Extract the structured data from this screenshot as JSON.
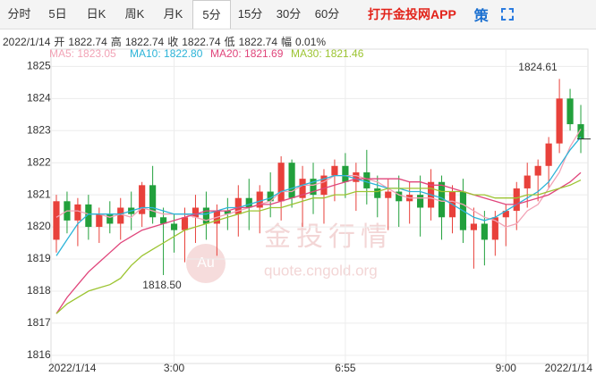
{
  "tabs": [
    "分时",
    "5日",
    "日K",
    "周K",
    "月K",
    "5分",
    "15分",
    "30分",
    "60分"
  ],
  "selected_tab": "5分",
  "app_link": "打开金投网APP",
  "strategy": "策",
  "info": {
    "date": "2022/1/14",
    "items": [
      {
        "label": "开",
        "value": "1822.74"
      },
      {
        "label": "高",
        "value": "1822.74"
      },
      {
        "label": "收",
        "value": "1822.74"
      },
      {
        "label": "低",
        "value": "1822.74"
      },
      {
        "label": "幅",
        "value": "0.01%"
      }
    ]
  },
  "chart_data": {
    "type": "candlestick",
    "categories": [
      "2022/1/14",
      null,
      null,
      null,
      null,
      null,
      null,
      null,
      null,
      null,
      null,
      "3:00",
      null,
      null,
      null,
      null,
      null,
      null,
      null,
      null,
      null,
      null,
      null,
      null,
      null,
      null,
      null,
      "6:55",
      null,
      null,
      null,
      null,
      null,
      null,
      null,
      null,
      null,
      null,
      null,
      null,
      null,
      null,
      "9:00",
      null,
      null,
      null,
      null,
      null,
      null,
      "2022/1/14"
    ],
    "open": [
      1819.6,
      1820.8,
      1820.2,
      1820.7,
      1820.0,
      1820.4,
      1820.1,
      1820.6,
      1820.4,
      1821.3,
      1820.3,
      1820.1,
      1819.9,
      1820.3,
      1820.6,
      1820.1,
      1820.5,
      1820.4,
      1820.9,
      1820.6,
      1821.1,
      1820.8,
      1822.0,
      1820.9,
      1821.5,
      1821.0,
      1821.6,
      1821.9,
      1821.4,
      1821.7,
      1821.2,
      1820.9,
      1821.1,
      1820.8,
      1821.0,
      1820.6,
      1821.4,
      1820.3,
      1821.1,
      1819.9,
      1820.1,
      1819.6,
      1820.3,
      1820.5,
      1821.2,
      1821.6,
      1821.9,
      1822.6,
      1824.0,
      1823.2
    ],
    "high": [
      1821.0,
      1821.1,
      1820.9,
      1821.0,
      1820.6,
      1820.8,
      1820.9,
      1821.1,
      1821.4,
      1821.9,
      1820.6,
      1820.4,
      1820.6,
      1821.0,
      1821.1,
      1820.7,
      1820.9,
      1821.3,
      1821.5,
      1821.3,
      1821.7,
      1822.2,
      1822.1,
      1821.9,
      1822.0,
      1821.8,
      1822.1,
      1822.3,
      1822.0,
      1822.4,
      1821.6,
      1821.5,
      1821.6,
      1821.4,
      1821.6,
      1821.8,
      1821.6,
      1821.3,
      1821.5,
      1820.6,
      1820.5,
      1820.5,
      1820.7,
      1821.4,
      1822.0,
      1822.1,
      1822.8,
      1824.61,
      1824.3,
      1823.8
    ],
    "low": [
      1819.2,
      1819.8,
      1819.4,
      1819.6,
      1819.5,
      1819.8,
      1819.6,
      1819.9,
      1820.0,
      1820.1,
      1818.5,
      1819.2,
      1818.9,
      1819.5,
      1819.6,
      1819.1,
      1819.9,
      1819.7,
      1819.9,
      1819.8,
      1820.3,
      1820.2,
      1820.6,
      1820.0,
      1820.4,
      1820.1,
      1820.8,
      1820.9,
      1820.5,
      1820.7,
      1820.3,
      1819.9,
      1820.0,
      1820.1,
      1819.7,
      1820.2,
      1819.6,
      1819.8,
      1819.5,
      1818.7,
      1818.8,
      1819.1,
      1819.4,
      1819.9,
      1820.6,
      1820.8,
      1821.2,
      1822.3,
      1823.0,
      1822.3
    ],
    "close": [
      1820.8,
      1820.2,
      1820.7,
      1820.0,
      1820.4,
      1820.1,
      1820.6,
      1820.4,
      1821.3,
      1820.3,
      1820.1,
      1819.9,
      1820.3,
      1820.6,
      1820.1,
      1820.5,
      1820.4,
      1820.9,
      1820.6,
      1821.1,
      1820.8,
      1822.0,
      1820.9,
      1821.5,
      1821.0,
      1821.6,
      1821.9,
      1821.4,
      1821.7,
      1821.2,
      1820.9,
      1821.1,
      1820.8,
      1821.0,
      1820.6,
      1821.4,
      1820.3,
      1821.1,
      1819.9,
      1820.1,
      1819.6,
      1820.3,
      1820.5,
      1821.2,
      1821.6,
      1821.9,
      1822.6,
      1824.0,
      1823.2,
      1822.74
    ],
    "up_color": "#e8413b",
    "down_color": "#22a03c",
    "series": [
      {
        "name": "MA5",
        "legend_label": "MA5: 1823.05",
        "color": "#f2a3b6",
        "values": [
          1820.3,
          1820.5,
          1820.5,
          1820.4,
          1820.4,
          1820.3,
          1820.4,
          1820.3,
          1820.6,
          1820.5,
          1820.4,
          1820.4,
          1820.4,
          1820.3,
          1820.2,
          1820.3,
          1820.4,
          1820.5,
          1820.6,
          1820.7,
          1820.8,
          1821.1,
          1821.1,
          1821.3,
          1821.3,
          1821.4,
          1821.6,
          1821.6,
          1821.6,
          1821.5,
          1821.4,
          1821.2,
          1821.0,
          1820.9,
          1820.9,
          1820.9,
          1820.8,
          1820.8,
          1820.7,
          1820.5,
          1820.3,
          1820.2,
          1820.0,
          1820.1,
          1820.5,
          1820.7,
          1821.2,
          1821.7,
          1822.5,
          1823.05
        ]
      },
      {
        "name": "MA10",
        "legend_label": "MA10: 1822.80",
        "color": "#2cb4d8",
        "values": [
          1819.1,
          1819.6,
          1820.1,
          1820.4,
          1820.4,
          1820.4,
          1820.4,
          1820.5,
          1820.6,
          1820.6,
          1820.5,
          1820.4,
          1820.4,
          1820.4,
          1820.4,
          1820.5,
          1820.6,
          1820.6,
          1820.7,
          1820.8,
          1820.9,
          1821.1,
          1821.2,
          1821.3,
          1821.4,
          1821.5,
          1821.6,
          1821.6,
          1821.5,
          1821.4,
          1821.3,
          1821.2,
          1821.2,
          1821.1,
          1821.1,
          1821.0,
          1820.9,
          1820.7,
          1820.5,
          1820.3,
          1820.2,
          1820.3,
          1820.5,
          1820.7,
          1820.9,
          1821.1,
          1821.4,
          1821.9,
          1822.4,
          1822.8
        ]
      },
      {
        "name": "MA20",
        "legend_label": "MA20: 1821.69",
        "color": "#e0457b",
        "values": [
          1817.3,
          1817.8,
          1818.2,
          1818.6,
          1818.9,
          1819.2,
          1819.5,
          1819.7,
          1819.9,
          1820.0,
          1820.1,
          1820.2,
          1820.3,
          1820.4,
          1820.5,
          1820.5,
          1820.5,
          1820.6,
          1820.6,
          1820.7,
          1820.7,
          1820.8,
          1820.9,
          1821.0,
          1821.1,
          1821.2,
          1821.3,
          1821.4,
          1821.5,
          1821.5,
          1821.5,
          1821.5,
          1821.5,
          1821.4,
          1821.4,
          1821.3,
          1821.3,
          1821.2,
          1821.1,
          1821.0,
          1820.9,
          1820.8,
          1820.7,
          1820.7,
          1820.8,
          1820.9,
          1821.0,
          1821.2,
          1821.4,
          1821.69
        ]
      },
      {
        "name": "MA30",
        "legend_label": "MA30: 1821.46",
        "color": "#9cc431",
        "values": [
          1817.3,
          1817.6,
          1817.8,
          1818.0,
          1818.1,
          1818.2,
          1818.4,
          1818.8,
          1819.1,
          1819.3,
          1819.5,
          1819.7,
          1819.9,
          1820.0,
          1820.1,
          1820.2,
          1820.3,
          1820.4,
          1820.5,
          1820.5,
          1820.6,
          1820.6,
          1820.7,
          1820.8,
          1820.9,
          1820.9,
          1821.0,
          1821.0,
          1821.1,
          1821.1,
          1821.1,
          1821.2,
          1821.2,
          1821.2,
          1821.2,
          1821.2,
          1821.1,
          1821.1,
          1821.1,
          1821.0,
          1821.0,
          1820.9,
          1820.9,
          1820.9,
          1821.0,
          1821.0,
          1821.1,
          1821.2,
          1821.3,
          1821.46
        ]
      }
    ],
    "high_label": "1824.61",
    "low_label": "1818.50",
    "watermark": "金投行情",
    "watermark_url": "quote.cngold.org",
    "watermark_logo": "Au",
    "ylim": [
      1815.8,
      1825.4
    ],
    "yticks": [
      1816,
      1817,
      1818,
      1819,
      1820,
      1821,
      1822,
      1823,
      1824,
      1825
    ],
    "grid": true
  }
}
